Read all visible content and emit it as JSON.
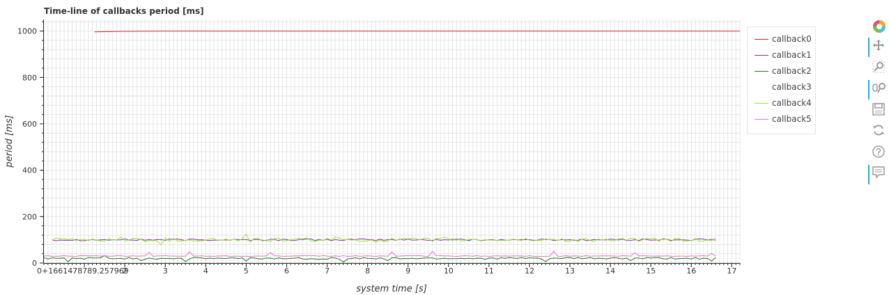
{
  "chart_data": {
    "type": "line",
    "title": "Time-line of callbacks period [ms]",
    "xlabel": "system time [s]",
    "ylabel": "period [ms]",
    "xlim": [
      0,
      17.2
    ],
    "ylim": [
      0,
      1050
    ],
    "x_origin_label": "0+1661478789.257969",
    "x_ticks": [
      1,
      2,
      3,
      4,
      5,
      6,
      7,
      8,
      9,
      10,
      11,
      12,
      13,
      14,
      15,
      16,
      17
    ],
    "y_ticks": [
      0,
      200,
      400,
      600,
      800,
      1000
    ],
    "grid": true,
    "legend_position": "right",
    "series": [
      {
        "name": "callback0",
        "color": "#e31a1c",
        "x": [
          1.25,
          2.0,
          3.0,
          4.0,
          5.0,
          6.0,
          7.0,
          8.0,
          9.0,
          10.0,
          11.0,
          12.0,
          13.0,
          14.0,
          15.0,
          16.0,
          17.2
        ],
        "y": [
          997,
          999,
          1000,
          1000,
          1000,
          1000,
          1000,
          1000,
          1000,
          1000,
          1000,
          1000,
          1000,
          1000,
          1000,
          1000,
          1000
        ]
      },
      {
        "name": "callback1",
        "color": "#7b3294",
        "pattern": "jitter",
        "base": 100,
        "amp": 4,
        "x_start": 0.2,
        "x_end": 16.6,
        "step": 0.1
      },
      {
        "name": "callback2",
        "color": "#1b7a1b",
        "pattern": "jitter",
        "base": 20,
        "amp": 4,
        "x_start": 0.0,
        "x_end": 16.6,
        "step": 0.1,
        "spikes": [
          [
            0.6,
            5
          ],
          [
            1.5,
            32
          ],
          [
            2.4,
            10
          ],
          [
            3.5,
            6
          ],
          [
            5.0,
            8
          ],
          [
            7.4,
            4
          ],
          [
            8.5,
            10
          ],
          [
            12.4,
            6
          ],
          [
            14.5,
            10
          ],
          [
            16.5,
            8
          ]
        ]
      },
      {
        "name": "callback3",
        "color": "#ffffff",
        "pattern": "none"
      },
      {
        "name": "callback4",
        "color": "#9be22d",
        "pattern": "jitter",
        "base": 100,
        "amp": 8,
        "x_start": 0.2,
        "x_end": 16.6,
        "step": 0.1,
        "spikes": [
          [
            1.9,
            112
          ],
          [
            2.9,
            78
          ],
          [
            5.0,
            125
          ],
          [
            5.1,
            90
          ],
          [
            7.2,
            112
          ],
          [
            8.2,
            88
          ],
          [
            9.9,
            112
          ],
          [
            13.2,
            92
          ]
        ]
      },
      {
        "name": "callback5",
        "color": "#f06fd0",
        "pattern": "jitter",
        "base": 30,
        "amp": 2,
        "x_start": 0.0,
        "x_end": 16.6,
        "step": 0.1,
        "spikes": [
          [
            2.55,
            46
          ],
          [
            3.55,
            48
          ],
          [
            5.55,
            44
          ],
          [
            8.55,
            48
          ],
          [
            9.55,
            50
          ],
          [
            12.55,
            50
          ],
          [
            14.55,
            44
          ],
          [
            16.5,
            42
          ]
        ]
      }
    ]
  },
  "toolbar": {
    "tools": [
      {
        "name": "bokeh-logo-icon",
        "active": false
      },
      {
        "name": "pan-tool-icon",
        "active": true
      },
      {
        "name": "box-zoom-tool-icon",
        "active": false
      },
      {
        "name": "wheel-zoom-tool-icon",
        "active": true
      },
      {
        "name": "save-tool-icon",
        "active": false
      },
      {
        "name": "reset-tool-icon",
        "active": false
      },
      {
        "name": "help-tool-icon",
        "active": false
      },
      {
        "name": "hover-tool-icon",
        "active": true
      }
    ]
  }
}
